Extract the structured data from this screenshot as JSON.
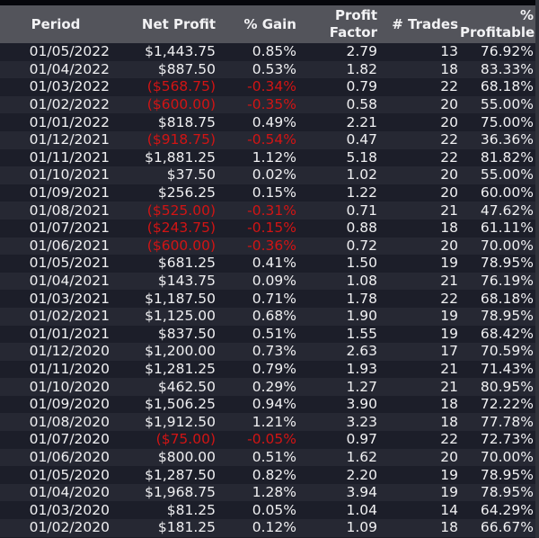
{
  "table": {
    "headers": [
      {
        "key": "period",
        "label": "Period"
      },
      {
        "key": "net_profit",
        "label": "Net Profit"
      },
      {
        "key": "gain",
        "label": "% Gain"
      },
      {
        "key": "profit_factor",
        "label": "Profit Factor"
      },
      {
        "key": "trades",
        "label": "# Trades"
      },
      {
        "key": "pct_profitable",
        "label": "% Profitable"
      }
    ],
    "negative_color": "#d21414",
    "rows": [
      {
        "period": "01/05/2022",
        "net_profit": "$1,443.75",
        "gain": "0.85%",
        "profit_factor": "2.79",
        "trades": "13",
        "pct_profitable": "76.92%",
        "negative": false
      },
      {
        "period": "01/04/2022",
        "net_profit": "$887.50",
        "gain": "0.53%",
        "profit_factor": "1.82",
        "trades": "18",
        "pct_profitable": "83.33%",
        "negative": false
      },
      {
        "period": "01/03/2022",
        "net_profit": "($568.75)",
        "gain": "-0.34%",
        "profit_factor": "0.79",
        "trades": "22",
        "pct_profitable": "68.18%",
        "negative": true
      },
      {
        "period": "01/02/2022",
        "net_profit": "($600.00)",
        "gain": "-0.35%",
        "profit_factor": "0.58",
        "trades": "20",
        "pct_profitable": "55.00%",
        "negative": true
      },
      {
        "period": "01/01/2022",
        "net_profit": "$818.75",
        "gain": "0.49%",
        "profit_factor": "2.21",
        "trades": "20",
        "pct_profitable": "75.00%",
        "negative": false
      },
      {
        "period": "01/12/2021",
        "net_profit": "($918.75)",
        "gain": "-0.54%",
        "profit_factor": "0.47",
        "trades": "22",
        "pct_profitable": "36.36%",
        "negative": true
      },
      {
        "period": "01/11/2021",
        "net_profit": "$1,881.25",
        "gain": "1.12%",
        "profit_factor": "5.18",
        "trades": "22",
        "pct_profitable": "81.82%",
        "negative": false
      },
      {
        "period": "01/10/2021",
        "net_profit": "$37.50",
        "gain": "0.02%",
        "profit_factor": "1.02",
        "trades": "20",
        "pct_profitable": "55.00%",
        "negative": false
      },
      {
        "period": "01/09/2021",
        "net_profit": "$256.25",
        "gain": "0.15%",
        "profit_factor": "1.22",
        "trades": "20",
        "pct_profitable": "60.00%",
        "negative": false
      },
      {
        "period": "01/08/2021",
        "net_profit": "($525.00)",
        "gain": "-0.31%",
        "profit_factor": "0.71",
        "trades": "21",
        "pct_profitable": "47.62%",
        "negative": true
      },
      {
        "period": "01/07/2021",
        "net_profit": "($243.75)",
        "gain": "-0.15%",
        "profit_factor": "0.88",
        "trades": "18",
        "pct_profitable": "61.11%",
        "negative": true
      },
      {
        "period": "01/06/2021",
        "net_profit": "($600.00)",
        "gain": "-0.36%",
        "profit_factor": "0.72",
        "trades": "20",
        "pct_profitable": "70.00%",
        "negative": true
      },
      {
        "period": "01/05/2021",
        "net_profit": "$681.25",
        "gain": "0.41%",
        "profit_factor": "1.50",
        "trades": "19",
        "pct_profitable": "78.95%",
        "negative": false
      },
      {
        "period": "01/04/2021",
        "net_profit": "$143.75",
        "gain": "0.09%",
        "profit_factor": "1.08",
        "trades": "21",
        "pct_profitable": "76.19%",
        "negative": false
      },
      {
        "period": "01/03/2021",
        "net_profit": "$1,187.50",
        "gain": "0.71%",
        "profit_factor": "1.78",
        "trades": "22",
        "pct_profitable": "68.18%",
        "negative": false
      },
      {
        "period": "01/02/2021",
        "net_profit": "$1,125.00",
        "gain": "0.68%",
        "profit_factor": "1.90",
        "trades": "19",
        "pct_profitable": "78.95%",
        "negative": false
      },
      {
        "period": "01/01/2021",
        "net_profit": "$837.50",
        "gain": "0.51%",
        "profit_factor": "1.55",
        "trades": "19",
        "pct_profitable": "68.42%",
        "negative": false
      },
      {
        "period": "01/12/2020",
        "net_profit": "$1,200.00",
        "gain": "0.73%",
        "profit_factor": "2.63",
        "trades": "17",
        "pct_profitable": "70.59%",
        "negative": false
      },
      {
        "period": "01/11/2020",
        "net_profit": "$1,281.25",
        "gain": "0.79%",
        "profit_factor": "1.93",
        "trades": "21",
        "pct_profitable": "71.43%",
        "negative": false
      },
      {
        "period": "01/10/2020",
        "net_profit": "$462.50",
        "gain": "0.29%",
        "profit_factor": "1.27",
        "trades": "21",
        "pct_profitable": "80.95%",
        "negative": false
      },
      {
        "period": "01/09/2020",
        "net_profit": "$1,506.25",
        "gain": "0.94%",
        "profit_factor": "3.90",
        "trades": "18",
        "pct_profitable": "72.22%",
        "negative": false
      },
      {
        "period": "01/08/2020",
        "net_profit": "$1,912.50",
        "gain": "1.21%",
        "profit_factor": "3.23",
        "trades": "18",
        "pct_profitable": "77.78%",
        "negative": false
      },
      {
        "period": "01/07/2020",
        "net_profit": "($75.00)",
        "gain": "-0.05%",
        "profit_factor": "0.97",
        "trades": "22",
        "pct_profitable": "72.73%",
        "negative": true
      },
      {
        "period": "01/06/2020",
        "net_profit": "$800.00",
        "gain": "0.51%",
        "profit_factor": "1.62",
        "trades": "20",
        "pct_profitable": "70.00%",
        "negative": false
      },
      {
        "period": "01/05/2020",
        "net_profit": "$1,287.50",
        "gain": "0.82%",
        "profit_factor": "2.20",
        "trades": "19",
        "pct_profitable": "78.95%",
        "negative": false
      },
      {
        "period": "01/04/2020",
        "net_profit": "$1,968.75",
        "gain": "1.28%",
        "profit_factor": "3.94",
        "trades": "19",
        "pct_profitable": "78.95%",
        "negative": false
      },
      {
        "period": "01/03/2020",
        "net_profit": "$81.25",
        "gain": "0.05%",
        "profit_factor": "1.04",
        "trades": "14",
        "pct_profitable": "64.29%",
        "negative": false
      },
      {
        "period": "01/02/2020",
        "net_profit": "$181.25",
        "gain": "0.12%",
        "profit_factor": "1.09",
        "trades": "18",
        "pct_profitable": "66.67%",
        "negative": false
      }
    ]
  }
}
